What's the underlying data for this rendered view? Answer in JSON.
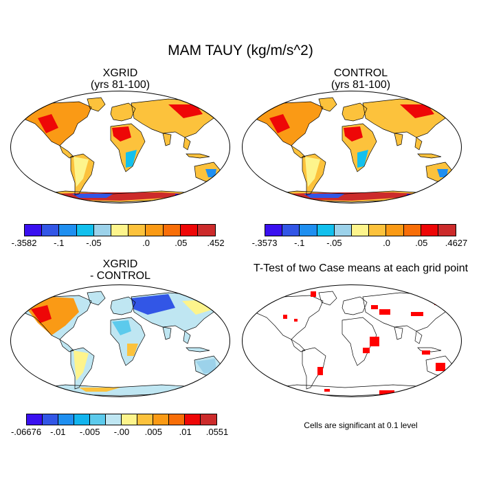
{
  "figure": {
    "title": "MAM TAUY (kg/m/s^2)",
    "panels": [
      {
        "id": "xgrid",
        "title_line1": "XGRID",
        "title_line2": "(yrs 81-100)"
      },
      {
        "id": "control",
        "title_line1": "CONTROL",
        "title_line2": "(yrs 81-100)"
      },
      {
        "id": "diff",
        "title_line1": "XGRID",
        "title_line2": "- CONTROL"
      },
      {
        "id": "ttest",
        "title_line1": "T-Test of two Case means at each grid point",
        "title_line2": ""
      }
    ],
    "colorbars": [
      {
        "panel": "xgrid",
        "labels": [
          "-.3582",
          "-.1",
          "-.05",
          ".0",
          ".05",
          ".452"
        ],
        "colors": [
          "#3a10f0",
          "#3256e6",
          "#1f8ff0",
          "#12c0ee",
          "#9cd2ea",
          "#fdf48c",
          "#fcc23c",
          "#fa9a15",
          "#f86e08",
          "#ee0707",
          "#cc2b2b"
        ]
      },
      {
        "panel": "control",
        "labels": [
          "-.3573",
          "-.1",
          "-.05",
          ".0",
          ".05",
          ".4627"
        ],
        "colors": [
          "#3a10f0",
          "#3256e6",
          "#1f8ff0",
          "#12c0ee",
          "#9cd2ea",
          "#fdf48c",
          "#fcc23c",
          "#fa9a15",
          "#f86e08",
          "#ee0707",
          "#cc2b2b"
        ]
      },
      {
        "panel": "diff",
        "labels": [
          "-.06676",
          "-.01",
          "-.005",
          "-.00",
          ".005",
          ".01",
          ".0551"
        ],
        "colors": [
          "#3a10f0",
          "#3256e6",
          "#1f8ff0",
          "#12b4ee",
          "#5ccaec",
          "#bfe6f2",
          "#fdf48c",
          "#fcc23c",
          "#fa9a15",
          "#f86e08",
          "#ee0707",
          "#cc2b2b"
        ]
      }
    ],
    "significance_note": "Cells are significant at 0.1 level"
  }
}
